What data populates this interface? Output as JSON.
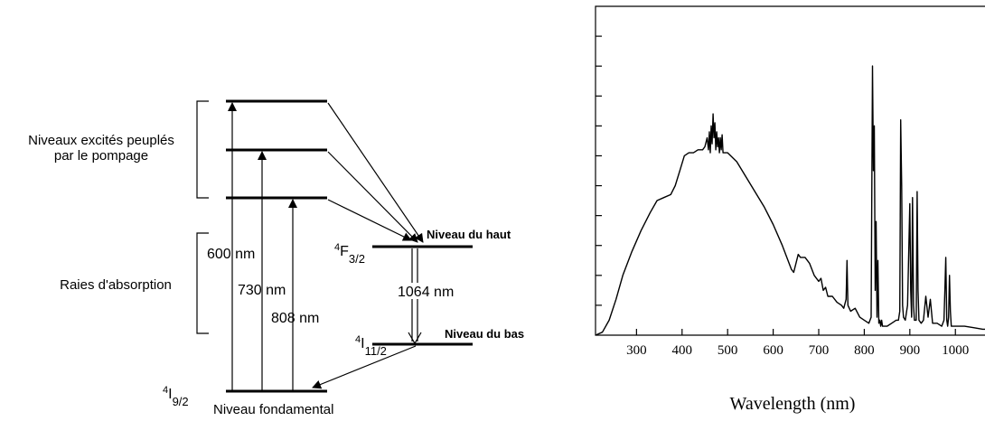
{
  "diagram": {
    "bracket_labels": {
      "excited_line1": "Niveaux excités peuplés",
      "excited_line2": "par le pompage",
      "absorption": "Raies d'absorption"
    },
    "wavelength_labels": {
      "w600": "600 nm",
      "w730": "730 nm",
      "w808": "808 nm",
      "w1064": "1064 nm"
    },
    "levels": {
      "upper_term": "4",
      "upper_sub": "F",
      "upper_frac": "3/2",
      "upper_name": "Niveau du haut",
      "lower_term": "4",
      "lower_sub": "I",
      "lower_frac": "11/2",
      "lower_name": "Niveau du bas",
      "ground_term": "4",
      "ground_sub": "I",
      "ground_frac": "9/2",
      "ground_name": "Niveau fondamental"
    }
  },
  "chart_data": {
    "type": "line",
    "xlabel": "Wavelength (nm)",
    "ylabel": "",
    "xlim": [
      210,
      1065
    ],
    "ylim": [
      0,
      1
    ],
    "x_ticks": [
      300,
      400,
      500,
      600,
      700,
      800,
      900,
      1000
    ],
    "y_tick_count": 10,
    "grid": false,
    "series": [
      {
        "x": [
          210,
          225,
          240,
          255,
          270,
          290,
          310,
          330,
          345,
          360,
          375,
          385,
          395,
          405,
          415,
          425,
          435,
          445,
          450,
          455,
          458,
          460,
          462,
          464,
          466,
          468,
          470,
          472,
          474,
          476,
          478,
          480,
          482,
          484,
          486,
          488,
          490,
          495,
          500,
          520,
          540,
          560,
          580,
          600,
          620,
          640,
          645,
          650,
          655,
          660,
          665,
          670,
          680,
          690,
          700,
          705,
          710,
          715,
          720,
          730,
          740,
          750,
          755,
          760,
          762,
          764,
          767,
          770,
          780,
          790,
          800,
          810,
          815,
          818,
          820,
          822,
          824,
          826,
          828,
          830,
          832,
          834,
          836,
          838,
          840,
          845,
          850,
          860,
          870,
          875,
          878,
          880,
          882,
          884,
          886,
          890,
          895,
          900,
          902,
          904,
          906,
          908,
          910,
          912,
          914,
          916,
          918,
          920,
          925,
          930,
          935,
          940,
          945,
          950,
          960,
          970,
          975,
          977,
          979,
          981,
          983,
          985,
          987,
          989,
          991,
          993,
          995,
          1000,
          1010,
          1020,
          1040,
          1060,
          1065
        ],
        "y": [
          0.0,
          0.01,
          0.05,
          0.12,
          0.2,
          0.28,
          0.35,
          0.41,
          0.45,
          0.46,
          0.47,
          0.5,
          0.55,
          0.6,
          0.61,
          0.61,
          0.62,
          0.62,
          0.63,
          0.66,
          0.62,
          0.68,
          0.61,
          0.7,
          0.64,
          0.74,
          0.66,
          0.71,
          0.62,
          0.68,
          0.63,
          0.66,
          0.61,
          0.66,
          0.62,
          0.67,
          0.61,
          0.61,
          0.61,
          0.58,
          0.53,
          0.48,
          0.43,
          0.37,
          0.3,
          0.22,
          0.21,
          0.24,
          0.27,
          0.26,
          0.26,
          0.26,
          0.24,
          0.2,
          0.18,
          0.19,
          0.15,
          0.16,
          0.13,
          0.13,
          0.11,
          0.1,
          0.09,
          0.12,
          0.25,
          0.1,
          0.09,
          0.08,
          0.09,
          0.06,
          0.05,
          0.04,
          0.06,
          0.9,
          0.55,
          0.7,
          0.15,
          0.38,
          0.06,
          0.25,
          0.04,
          0.05,
          0.03,
          0.05,
          0.03,
          0.03,
          0.03,
          0.04,
          0.05,
          0.05,
          0.08,
          0.72,
          0.5,
          0.1,
          0.06,
          0.05,
          0.1,
          0.44,
          0.15,
          0.06,
          0.46,
          0.1,
          0.05,
          0.05,
          0.05,
          0.48,
          0.15,
          0.05,
          0.04,
          0.05,
          0.13,
          0.06,
          0.12,
          0.04,
          0.04,
          0.03,
          0.05,
          0.15,
          0.26,
          0.05,
          0.03,
          0.06,
          0.2,
          0.08,
          0.03,
          0.03,
          0.03,
          0.03,
          0.03,
          0.03,
          0.025,
          0.02,
          0.02
        ]
      }
    ]
  }
}
